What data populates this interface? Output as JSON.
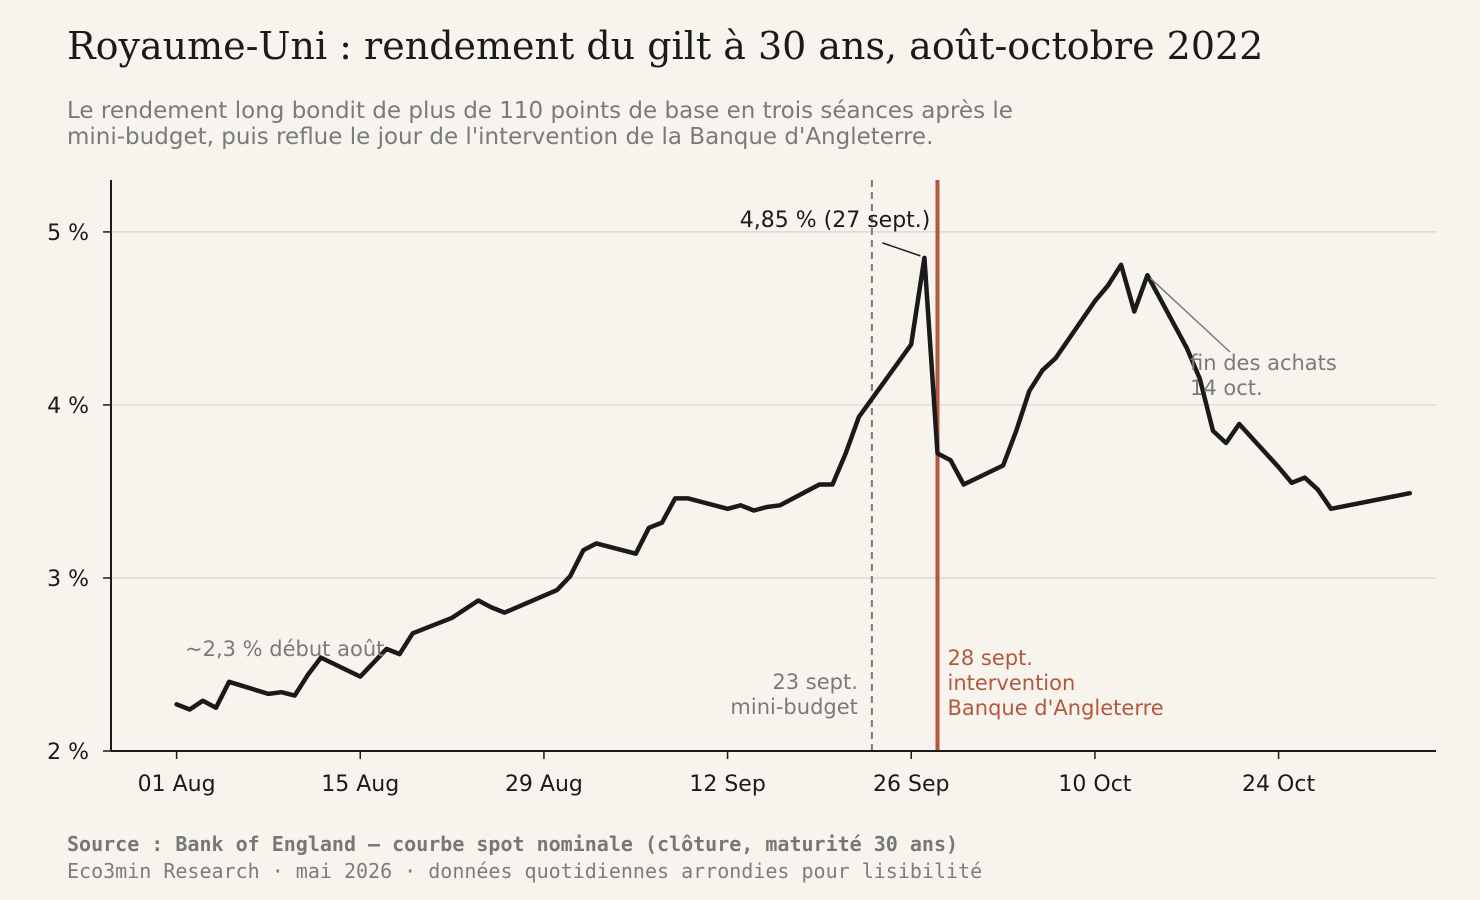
{
  "header": {
    "title": "Royaume-Uni : rendement du gilt à 30 ans, août-octobre 2022",
    "subtitle_line1": "Le rendement long bondit de plus de 110 points de base en trois séances après le",
    "subtitle_line2": "mini-budget, puis reflue le jour de l'intervention de la Banque d'Angleterre."
  },
  "footer": {
    "source": "Source : Bank of England — courbe spot nominale (clôture, maturité 30 ans)",
    "credit": "Eco3min Research · mai 2026 · données quotidiennes arrondies pour lisibilité"
  },
  "colors": {
    "background": "#f7f4ee",
    "line": "#1a1a1a",
    "accent": "#b5573f",
    "muted": "#7a7a7a",
    "grid": "#d6d3cd"
  },
  "chart_data": {
    "type": "line",
    "title": "Royaume-Uni : rendement du gilt à 30 ans, août-octobre 2022",
    "ylabel": "",
    "xlabel": "",
    "ylim": [
      2,
      5.3
    ],
    "xlim": [
      "2022-07-27",
      "2022-11-05"
    ],
    "grid": true,
    "y_ticks": [
      {
        "value": 2,
        "label": "2 %"
      },
      {
        "value": 3,
        "label": "3 %"
      },
      {
        "value": 4,
        "label": "4 %"
      },
      {
        "value": 5,
        "label": "5 %"
      }
    ],
    "x_ticks": [
      {
        "date": "2022-08-01",
        "label": "01 Aug"
      },
      {
        "date": "2022-08-15",
        "label": "15 Aug"
      },
      {
        "date": "2022-08-29",
        "label": "29 Aug"
      },
      {
        "date": "2022-09-12",
        "label": "12 Sep"
      },
      {
        "date": "2022-09-26",
        "label": "26 Sep"
      },
      {
        "date": "2022-10-10",
        "label": "10 Oct"
      },
      {
        "date": "2022-10-24",
        "label": "24 Oct"
      }
    ],
    "series": [
      {
        "values": [
          {
            "x": "2022-08-01",
            "y": 2.27
          },
          {
            "x": "2022-08-02",
            "y": 2.24
          },
          {
            "x": "2022-08-03",
            "y": 2.29
          },
          {
            "x": "2022-08-04",
            "y": 2.25
          },
          {
            "x": "2022-08-05",
            "y": 2.4
          },
          {
            "x": "2022-08-08",
            "y": 2.33
          },
          {
            "x": "2022-08-09",
            "y": 2.34
          },
          {
            "x": "2022-08-10",
            "y": 2.32
          },
          {
            "x": "2022-08-11",
            "y": 2.44
          },
          {
            "x": "2022-08-12",
            "y": 2.54
          },
          {
            "x": "2022-08-15",
            "y": 2.43
          },
          {
            "x": "2022-08-16",
            "y": 2.51
          },
          {
            "x": "2022-08-17",
            "y": 2.59
          },
          {
            "x": "2022-08-18",
            "y": 2.56
          },
          {
            "x": "2022-08-19",
            "y": 2.68
          },
          {
            "x": "2022-08-22",
            "y": 2.77
          },
          {
            "x": "2022-08-23",
            "y": 2.82
          },
          {
            "x": "2022-08-24",
            "y": 2.87
          },
          {
            "x": "2022-08-25",
            "y": 2.83
          },
          {
            "x": "2022-08-26",
            "y": 2.8
          },
          {
            "x": "2022-08-30",
            "y": 2.93
          },
          {
            "x": "2022-08-31",
            "y": 3.01
          },
          {
            "x": "2022-09-01",
            "y": 3.16
          },
          {
            "x": "2022-09-02",
            "y": 3.2
          },
          {
            "x": "2022-09-05",
            "y": 3.14
          },
          {
            "x": "2022-09-06",
            "y": 3.29
          },
          {
            "x": "2022-09-07",
            "y": 3.32
          },
          {
            "x": "2022-09-08",
            "y": 3.46
          },
          {
            "x": "2022-09-09",
            "y": 3.46
          },
          {
            "x": "2022-09-12",
            "y": 3.4
          },
          {
            "x": "2022-09-13",
            "y": 3.42
          },
          {
            "x": "2022-09-14",
            "y": 3.39
          },
          {
            "x": "2022-09-15",
            "y": 3.41
          },
          {
            "x": "2022-09-16",
            "y": 3.42
          },
          {
            "x": "2022-09-19",
            "y": 3.54
          },
          {
            "x": "2022-09-20",
            "y": 3.54
          },
          {
            "x": "2022-09-21",
            "y": 3.72
          },
          {
            "x": "2022-09-22",
            "y": 3.93
          },
          {
            "x": "2022-09-26",
            "y": 4.35
          },
          {
            "x": "2022-09-27",
            "y": 4.85
          },
          {
            "x": "2022-09-28",
            "y": 3.72
          },
          {
            "x": "2022-09-29",
            "y": 3.68
          },
          {
            "x": "2022-09-30",
            "y": 3.54
          },
          {
            "x": "2022-10-03",
            "y": 3.65
          },
          {
            "x": "2022-10-04",
            "y": 3.85
          },
          {
            "x": "2022-10-05",
            "y": 4.08
          },
          {
            "x": "2022-10-06",
            "y": 4.2
          },
          {
            "x": "2022-10-07",
            "y": 4.27
          },
          {
            "x": "2022-10-10",
            "y": 4.6
          },
          {
            "x": "2022-10-11",
            "y": 4.69
          },
          {
            "x": "2022-10-12",
            "y": 4.81
          },
          {
            "x": "2022-10-13",
            "y": 4.54
          },
          {
            "x": "2022-10-14",
            "y": 4.75
          },
          {
            "x": "2022-10-17",
            "y": 4.33
          },
          {
            "x": "2022-10-18",
            "y": 4.15
          },
          {
            "x": "2022-10-19",
            "y": 3.85
          },
          {
            "x": "2022-10-20",
            "y": 3.78
          },
          {
            "x": "2022-10-21",
            "y": 3.89
          },
          {
            "x": "2022-10-24",
            "y": 3.64
          },
          {
            "x": "2022-10-25",
            "y": 3.55
          },
          {
            "x": "2022-10-26",
            "y": 3.58
          },
          {
            "x": "2022-10-27",
            "y": 3.51
          },
          {
            "x": "2022-10-28",
            "y": 3.4
          },
          {
            "x": "2022-11-03",
            "y": 3.49
          }
        ]
      }
    ],
    "events": [
      {
        "date": "2022-09-23",
        "style": "dashed",
        "label_line1": "23 sept.",
        "label_line2": "mini-budget",
        "label_line3": ""
      },
      {
        "date": "2022-09-28",
        "style": "solid-accent",
        "label_line1": "28 sept.",
        "label_line2": "intervention",
        "label_line3": "Banque d'Angleterre"
      }
    ],
    "annotations": [
      {
        "id": "peak",
        "text": "4,85 % (27 sept.)",
        "point": {
          "x": "2022-09-27",
          "y": 4.85
        }
      },
      {
        "id": "start",
        "text": "~2,3 % début août",
        "point": {
          "x": "2022-08-01",
          "y": 2.3
        }
      },
      {
        "id": "boe-end",
        "text_line1": "fin des achats",
        "text_line2": "14 oct.",
        "point": {
          "x": "2022-10-14",
          "y": 4.75
        }
      }
    ]
  }
}
